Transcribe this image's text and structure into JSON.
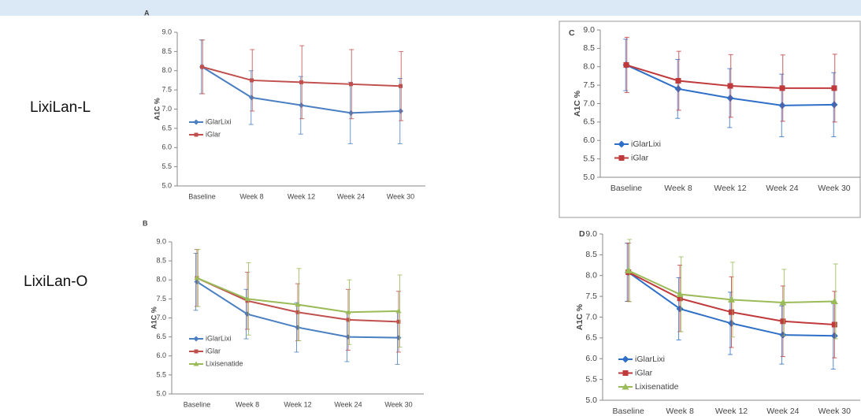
{
  "row_labels": [
    "LixiLan-L",
    "LixiLan-O"
  ],
  "chart_data": [
    {
      "type": "line",
      "title": "A",
      "ylabel": "A1C %",
      "legend": "center left",
      "categories": [
        "Baseline",
        "Week 8",
        "Week 12",
        "Week 24",
        "Week 30"
      ],
      "ylim": [
        5,
        9
      ],
      "yticks": [
        {
          "value": 5,
          "label": "5.0"
        },
        {
          "value": 5.5,
          "label": "5.5"
        },
        {
          "value": 6,
          "label": "6.0"
        },
        {
          "value": 6.5,
          "label": "6.5"
        },
        {
          "value": 7,
          "label": "7.0"
        },
        {
          "value": 7.5,
          "label": "7.5"
        },
        {
          "value": 8,
          "label": "8.0"
        },
        {
          "value": 8.5,
          "label": "8.5"
        },
        {
          "value": 9,
          "label": "9.0"
        }
      ],
      "series": [
        {
          "name": "iGlarLixi",
          "color": "#4a7fc1",
          "marker": "diamond",
          "values": [
            8.1,
            7.3,
            7.1,
            6.9,
            6.95
          ],
          "errors": [
            0.7,
            0.7,
            0.75,
            0.8,
            0.85
          ]
        },
        {
          "name": "iGlar",
          "color": "#c0504d",
          "marker": "square",
          "values": [
            8.1,
            7.75,
            7.7,
            7.65,
            7.6
          ],
          "errors": [
            0.7,
            0.8,
            0.95,
            0.9,
            0.9
          ]
        }
      ]
    },
    {
      "type": "line",
      "title": "B",
      "ylabel": "A1C %",
      "legend": "lower left",
      "categories": [
        "Baseline",
        "Week 8",
        "Week 12",
        "Week 24",
        "Week 30"
      ],
      "ylim": [
        5,
        9
      ],
      "yticks": [
        {
          "value": 5,
          "label": "5.0"
        },
        {
          "value": 5.5,
          "label": "5.5"
        },
        {
          "value": 6,
          "label": "6.0"
        },
        {
          "value": 6.5,
          "label": "6.5"
        },
        {
          "value": 7,
          "label": "7.0"
        },
        {
          "value": 7.5,
          "label": "7.5"
        },
        {
          "value": 8,
          "label": "8.0"
        },
        {
          "value": 8.5,
          "label": "8.5"
        },
        {
          "value": 9,
          "label": "9.0"
        }
      ],
      "series": [
        {
          "name": "iGlarLixi",
          "color": "#4a7fc1",
          "marker": "diamond",
          "values": [
            7.95,
            7.1,
            6.75,
            6.5,
            6.48
          ],
          "errors": [
            0.75,
            0.65,
            0.65,
            0.65,
            0.7
          ]
        },
        {
          "name": "iGlar",
          "color": "#c0504d",
          "marker": "square",
          "values": [
            8.05,
            7.45,
            7.15,
            6.95,
            6.9
          ],
          "errors": [
            0.75,
            0.75,
            0.75,
            0.8,
            0.8
          ]
        },
        {
          "name": "Lixisenatide",
          "color": "#9bbb59",
          "marker": "triangle",
          "values": [
            8.05,
            7.5,
            7.35,
            7.15,
            7.18
          ],
          "errors": [
            0.75,
            0.95,
            0.95,
            0.85,
            0.95
          ]
        }
      ]
    },
    {
      "type": "line",
      "title": "C",
      "ylabel": "A1C %",
      "legend": "lower left",
      "categories": [
        "Baseline",
        "Week 8",
        "Week 12",
        "Week 24",
        "Week 30"
      ],
      "ylim": [
        5,
        9
      ],
      "yticks": [
        {
          "value": 5,
          "label": "5.0"
        },
        {
          "value": 5.5,
          "label": "5.5"
        },
        {
          "value": 6,
          "label": "6.0"
        },
        {
          "value": 6.5,
          "label": "6.5"
        },
        {
          "value": 7,
          "label": "7.0"
        },
        {
          "value": 7.5,
          "label": "7.5"
        },
        {
          "value": 8,
          "label": "8.0"
        },
        {
          "value": 8.5,
          "label": "8.5"
        },
        {
          "value": 9,
          "label": "9.0"
        }
      ],
      "series": [
        {
          "name": "iGlarLixi",
          "color": "#2e6fc7",
          "marker": "diamond",
          "values": [
            8.05,
            7.4,
            7.15,
            6.95,
            6.97
          ],
          "errors": [
            0.7,
            0.8,
            0.8,
            0.85,
            0.87
          ]
        },
        {
          "name": "iGlar",
          "color": "#c0393b",
          "marker": "square",
          "values": [
            8.05,
            7.62,
            7.48,
            7.42,
            7.42
          ],
          "errors": [
            0.75,
            0.8,
            0.85,
            0.9,
            0.92
          ]
        }
      ]
    },
    {
      "type": "line",
      "title": "D",
      "ylabel": "A1C %",
      "legend": "lower left",
      "categories": [
        "Baseline",
        "Week 8",
        "Week 12",
        "Week 24",
        "Week 30"
      ],
      "ylim": [
        5,
        9
      ],
      "yticks": [
        {
          "value": 5,
          "label": "5.0"
        },
        {
          "value": 5.5,
          "label": "5.5"
        },
        {
          "value": 6,
          "label": "6.0"
        },
        {
          "value": 6.5,
          "label": "6.5"
        },
        {
          "value": 7,
          "label": "7.0"
        },
        {
          "value": 7.5,
          "label": "7.5"
        },
        {
          "value": 8,
          "label": "8.0"
        },
        {
          "value": 8.5,
          "label": "8.5"
        },
        {
          "value": 9,
          "label": "9.0"
        }
      ],
      "series": [
        {
          "name": "iGlarLixi",
          "color": "#2e6fc7",
          "marker": "diamond",
          "values": [
            8.08,
            7.2,
            6.85,
            6.57,
            6.55
          ],
          "errors": [
            0.7,
            0.75,
            0.75,
            0.7,
            0.8
          ]
        },
        {
          "name": "iGlar",
          "color": "#c0393b",
          "marker": "square",
          "values": [
            8.08,
            7.45,
            7.12,
            6.9,
            6.82
          ],
          "errors": [
            0.7,
            0.8,
            0.85,
            0.85,
            0.8
          ]
        },
        {
          "name": "Lixisenatide",
          "color": "#9bbb59",
          "marker": "triangle",
          "values": [
            8.12,
            7.55,
            7.42,
            7.35,
            7.38
          ],
          "errors": [
            0.75,
            0.9,
            0.9,
            0.8,
            0.9
          ]
        }
      ]
    }
  ]
}
